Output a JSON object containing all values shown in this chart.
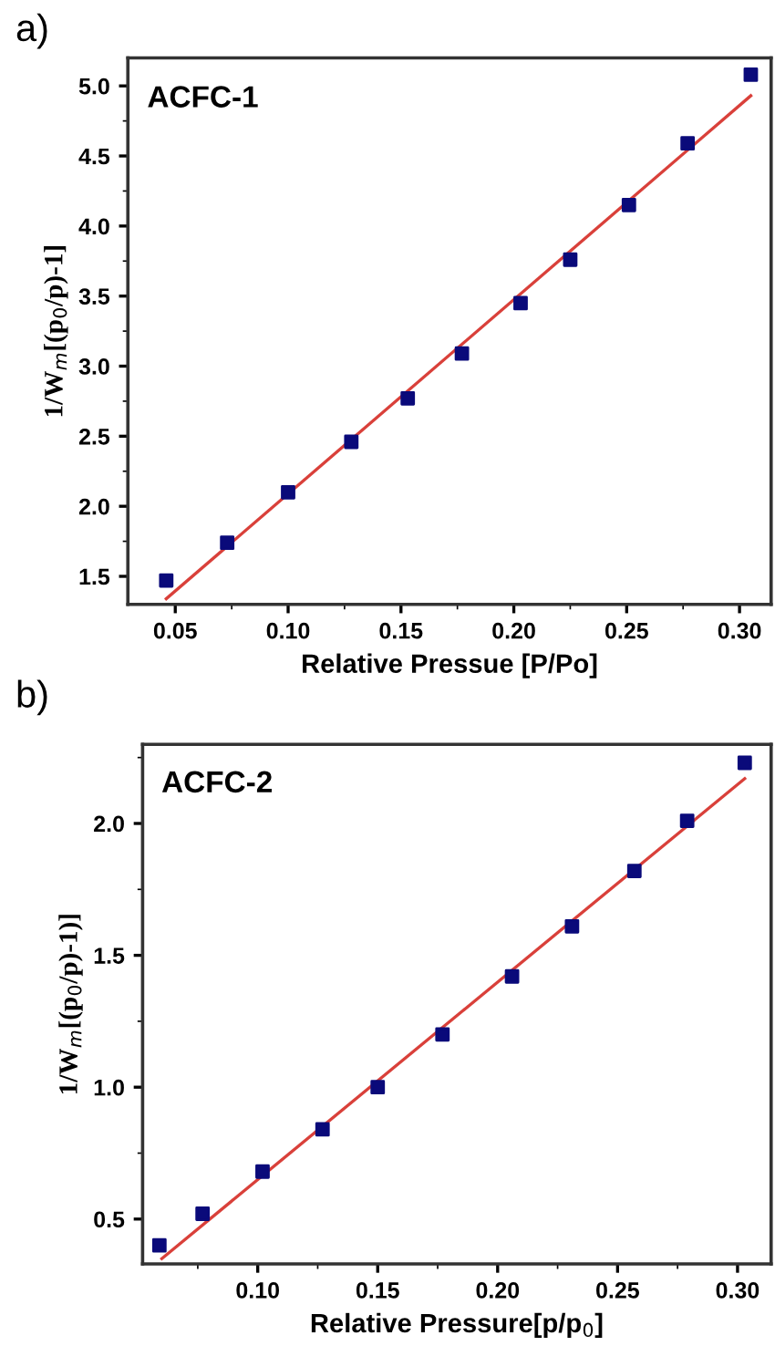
{
  "chart_data": [
    {
      "type": "scatter",
      "xlabel": "Relative Pressue [P/Po]",
      "ylabel": "1/W$_{m}$[(p$_{0}$/p)-1]",
      "annotations": [
        "a)",
        "ACFC-1"
      ],
      "grid": false,
      "legend": false,
      "xlim": [
        0.029,
        0.314
      ],
      "ylim": [
        1.3,
        5.2
      ],
      "xticks": [
        {
          "value": 0.05,
          "label": "0.05"
        },
        {
          "value": 0.1,
          "label": "0.10"
        },
        {
          "value": 0.15,
          "label": "0.15"
        },
        {
          "value": 0.2,
          "label": "0.20"
        },
        {
          "value": 0.25,
          "label": "0.25"
        },
        {
          "value": 0.3,
          "label": "0.30"
        }
      ],
      "yticks": [
        {
          "value": 1.5,
          "label": "1.5"
        },
        {
          "value": 2,
          "label": "2.0"
        },
        {
          "value": 2.5,
          "label": "2.5"
        },
        {
          "value": 3,
          "label": "3.0"
        },
        {
          "value": 3.5,
          "label": "3.5"
        },
        {
          "value": 4,
          "label": "4.0"
        },
        {
          "value": 4.5,
          "label": "4.5"
        },
        {
          "value": 5,
          "label": "5.0"
        }
      ],
      "series": [
        {
          "marker": "square",
          "color": "#0a0a7a",
          "x": [
            0.046,
            0.073,
            0.1,
            0.128,
            0.153,
            0.177,
            0.203,
            0.225,
            0.251,
            0.277,
            0.305
          ],
          "values": [
            1.47,
            1.74,
            2.1,
            2.46,
            2.77,
            3.09,
            3.45,
            3.76,
            4.15,
            4.59,
            5.08
          ]
        },
        {
          "type": "line",
          "color": "#d9403a",
          "x": [
            0.046,
            0.305
          ],
          "values": [
            1.34,
            4.93
          ]
        }
      ]
    },
    {
      "type": "scatter",
      "xlabel": "Relative Pressure[p/p$_{0}$]",
      "ylabel": "1/W$_{m}$[(p$_{0}$/p)-1)]",
      "annotations": [
        "b)",
        "ACFC-2"
      ],
      "grid": false,
      "legend": false,
      "xlim": [
        0.052,
        0.314
      ],
      "ylim": [
        0.33,
        2.3
      ],
      "xticks": [
        {
          "value": 0.1,
          "label": "0.10"
        },
        {
          "value": 0.15,
          "label": "0.15"
        },
        {
          "value": 0.2,
          "label": "0.20"
        },
        {
          "value": 0.25,
          "label": "0.25"
        },
        {
          "value": 0.3,
          "label": "0.30"
        }
      ],
      "yticks": [
        {
          "value": 0.5,
          "label": "0.5"
        },
        {
          "value": 1,
          "label": "1.0"
        },
        {
          "value": 1.5,
          "label": "1.5"
        },
        {
          "value": 2,
          "label": "2.0"
        }
      ],
      "series": [
        {
          "marker": "square",
          "color": "#0a0a7a",
          "x": [
            0.059,
            0.077,
            0.102,
            0.127,
            0.15,
            0.177,
            0.206,
            0.231,
            0.257,
            0.279,
            0.303
          ],
          "values": [
            0.4,
            0.52,
            0.68,
            0.84,
            1.0,
            1.2,
            1.42,
            1.61,
            1.82,
            2.01,
            2.23
          ]
        },
        {
          "type": "line",
          "color": "#d9403a",
          "x": [
            0.06,
            0.303
          ],
          "values": [
            0.35,
            2.17
          ]
        }
      ]
    }
  ]
}
